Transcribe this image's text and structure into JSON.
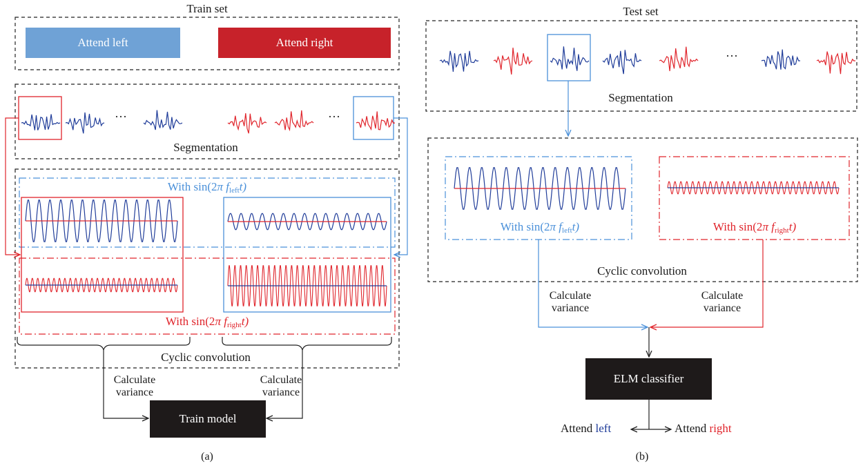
{
  "panel_a": {
    "title": "Train set",
    "attend_left_label": "Attend left",
    "attend_right_label": "Attend right",
    "ellipsis": "···",
    "segmentation_label": "Segmentation",
    "with_left_prefix": "With sin(2",
    "pi": "π",
    "f_symbol": "f",
    "sub_left": "left",
    "sub_right": "right",
    "with_suffix": "t)",
    "cyclic_label": "Cyclic convolution",
    "calc_left": "Calculate variance",
    "calc_right": "Calculate variance",
    "train_model_label": "Train model",
    "caption": "(a)"
  },
  "panel_b": {
    "title": "Test set",
    "ellipsis": "···",
    "segmentation_label": "Segmentation",
    "with_left_prefix": "With sin(2",
    "with_right_prefix": "With sin(2",
    "pi": "π",
    "f_symbol": "f",
    "sub_left": "left",
    "sub_right": "right",
    "with_suffix": "t)",
    "cyclic_label": "Cyclic convolution",
    "calc_left": "Calculate variance",
    "calc_right": "Calculate variance",
    "classifier_label": "ELM classifier",
    "attend_word": "Attend",
    "left_word": "left",
    "right_word": "right",
    "caption": "(b)"
  },
  "colors": {
    "blue_box": "#6fa2d6",
    "red_box": "#c7222a",
    "navy_wave": "#1f3c99",
    "red_wave": "#e0242b",
    "light_blue": "#4a90d9",
    "dark_box": "#1e1a1a"
  }
}
